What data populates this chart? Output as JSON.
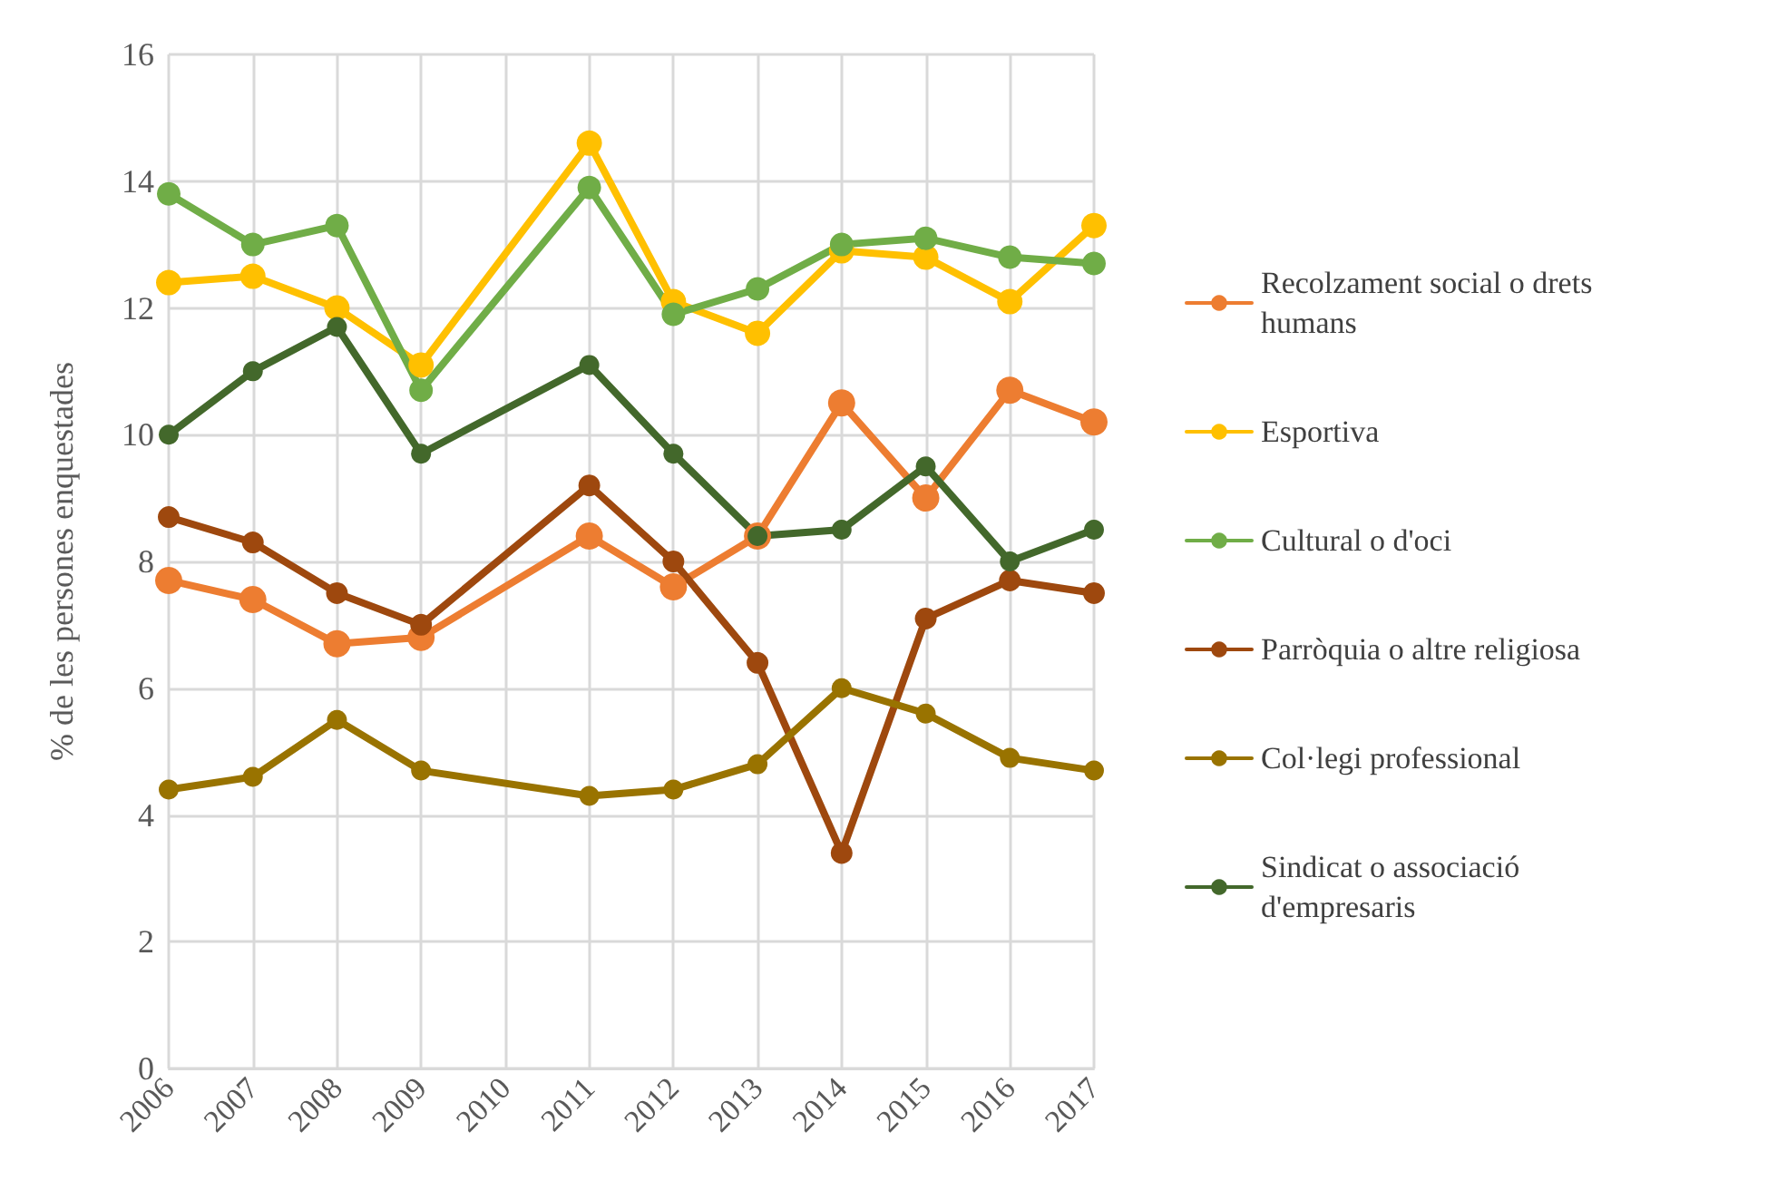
{
  "chart_data": {
    "type": "line",
    "ylabel": "% de les persones enquestades",
    "categories": [
      "2006",
      "2007",
      "2008",
      "2009",
      "2010",
      "2011",
      "2012",
      "2013",
      "2014",
      "2015",
      "2016",
      "2017"
    ],
    "series": [
      {
        "name": "Recolzament social o drets humans",
        "color": "#ed7d31",
        "values": [
          7.7,
          7.4,
          6.7,
          6.8,
          null,
          8.4,
          7.6,
          8.4,
          10.5,
          9.0,
          10.7,
          10.2
        ]
      },
      {
        "name": "Esportiva",
        "color": "#ffc000",
        "values": [
          12.4,
          12.5,
          12.0,
          11.1,
          null,
          14.6,
          12.1,
          11.6,
          12.9,
          12.8,
          12.1,
          13.3
        ]
      },
      {
        "name": "Cultural o d'oci",
        "color": "#70ad47",
        "values": [
          13.8,
          13.0,
          13.3,
          10.7,
          null,
          13.9,
          11.9,
          12.3,
          13.0,
          13.1,
          12.8,
          12.7
        ]
      },
      {
        "name": "Parròquia o altre religiosa",
        "color": "#9e480e",
        "values": [
          8.7,
          8.3,
          7.5,
          7.0,
          null,
          9.2,
          8.0,
          6.4,
          3.4,
          7.1,
          7.7,
          7.5
        ]
      },
      {
        "name": "Col·legi professional",
        "color": "#997300",
        "values": [
          4.4,
          4.6,
          5.5,
          4.7,
          null,
          4.3,
          4.4,
          4.8,
          6.0,
          5.6,
          4.9,
          4.7
        ]
      },
      {
        "name": "Sindicat o associació d'empresaris",
        "color": "#43682b",
        "values": [
          10.0,
          11.0,
          11.7,
          9.7,
          null,
          11.1,
          9.7,
          8.4,
          8.5,
          9.5,
          8.0,
          8.5
        ]
      }
    ],
    "ylim": [
      0,
      16
    ],
    "yticks": [
      0,
      2,
      4,
      6,
      8,
      10,
      12,
      14,
      16
    ],
    "grid": true,
    "legend": "right",
    "marker": "circle",
    "line_style": "solid"
  }
}
